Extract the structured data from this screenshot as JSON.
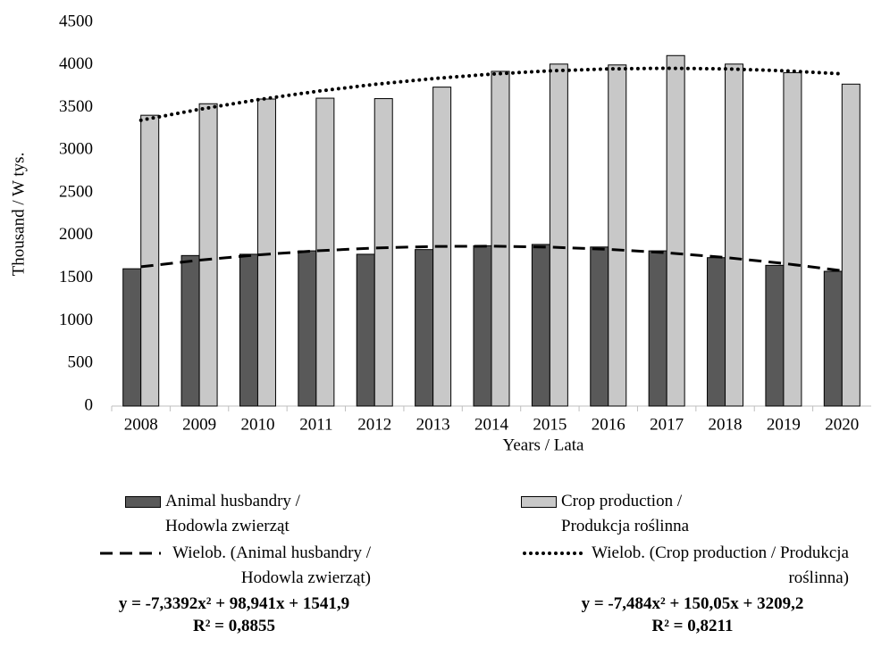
{
  "chart_data": {
    "type": "bar",
    "xlabel": "Years / Lata",
    "ylabel": "Thousand / W tys.",
    "categories": [
      "2008",
      "2009",
      "2010",
      "2011",
      "2012",
      "2013",
      "2014",
      "2015",
      "2016",
      "2017",
      "2018",
      "2019",
      "2020"
    ],
    "ylim": [
      0,
      4500
    ],
    "yticks": [
      0,
      500,
      1000,
      1500,
      2000,
      2500,
      3000,
      3500,
      4000,
      4500
    ],
    "series": [
      {
        "name": "Animal husbandry / Hodowla zwierząt",
        "type": "bar",
        "color": "#595959",
        "values": [
          1610,
          1765,
          1780,
          1820,
          1780,
          1835,
          1880,
          1895,
          1865,
          1820,
          1740,
          1650,
          1580
        ]
      },
      {
        "name": "Crop production / Produkcja roślinna",
        "type": "bar",
        "color": "#c8c8c8",
        "values": [
          3410,
          3545,
          3600,
          3610,
          3605,
          3740,
          3925,
          4010,
          4000,
          4110,
          4010,
          3910,
          3775
        ]
      },
      {
        "name": "Wielob. (Animal husbandry / Hodowla zwierząt)",
        "type": "line",
        "dash": "dashed",
        "color": "#000000",
        "values": [
          1633.5,
          1710.4,
          1772.7,
          1820.2,
          1853.1,
          1871.3,
          1874.9,
          1863.7,
          1837.9,
          1797.4,
          1742.2,
          1672.4,
          1587.8
        ]
      },
      {
        "name": "Wielob. (Crop production / Produkcja roślinna)",
        "type": "line",
        "dash": "dotted",
        "color": "#000000",
        "values": [
          3351.8,
          3479.4,
          3592.0,
          3689.7,
          3772.4,
          3840.1,
          3892.8,
          3930.6,
          3953.5,
          3961.3,
          3954.2,
          3932.1,
          3895.1
        ]
      }
    ],
    "annotations": [
      "y = -7,3392x² + 98,941x + 1541,9",
      "R² = 0,8855",
      "y = -7,484x² + 150,05x + 3209,2",
      "R² = 0,8211"
    ]
  }
}
